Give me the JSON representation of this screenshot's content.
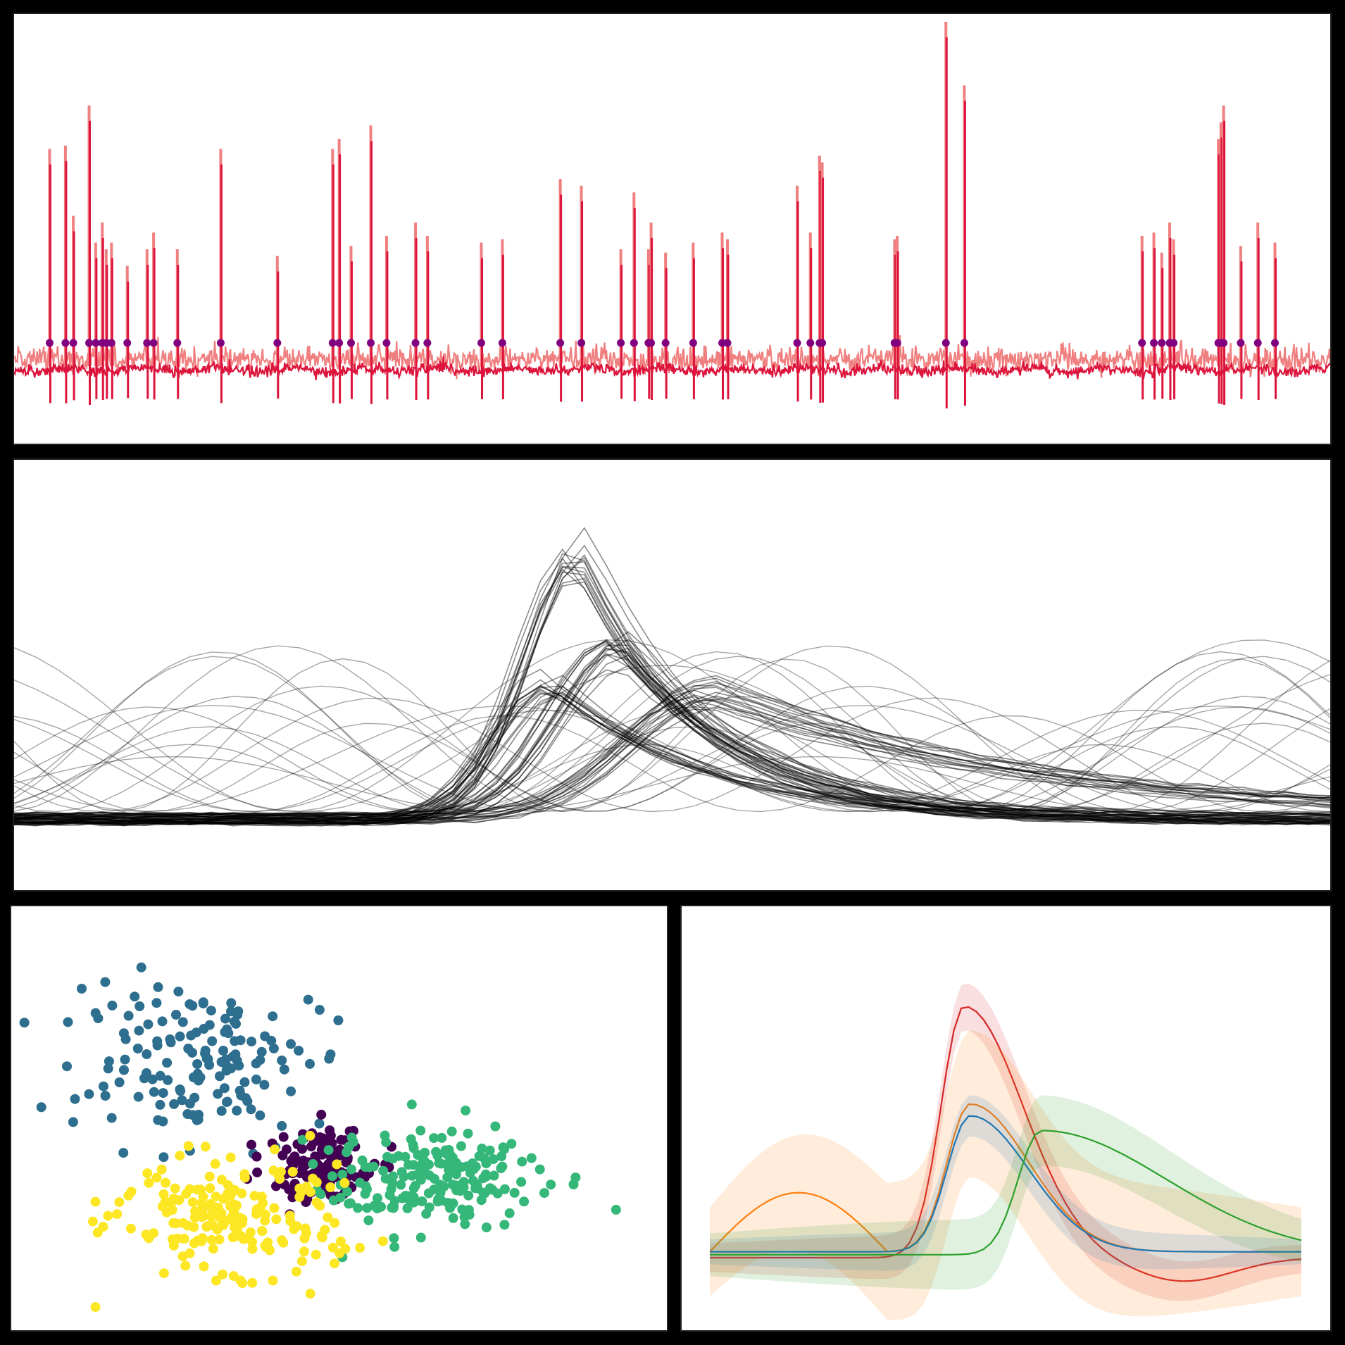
{
  "chart_data": [
    {
      "type": "line",
      "name": "raw-trace",
      "colors": {
        "filtered": "#dc143c",
        "raw": "#f08080",
        "spike_marker": "#800080"
      },
      "spike_times": [
        0.027,
        0.039,
        0.045,
        0.057,
        0.062,
        0.067,
        0.07,
        0.074,
        0.086,
        0.101,
        0.106,
        0.124,
        0.157,
        0.2,
        0.242,
        0.247,
        0.256,
        0.271,
        0.283,
        0.305,
        0.314,
        0.355,
        0.371,
        0.415,
        0.431,
        0.461,
        0.471,
        0.482,
        0.484,
        0.495,
        0.516,
        0.538,
        0.542,
        0.595,
        0.605,
        0.612,
        0.614,
        0.669,
        0.671,
        0.708,
        0.722,
        0.857,
        0.866,
        0.872,
        0.878,
        0.881,
        0.915,
        0.917,
        0.919,
        0.932,
        0.945,
        0.958
      ],
      "spike_amplitudes": [
        0.62,
        0.63,
        0.42,
        0.75,
        0.34,
        0.4,
        0.32,
        0.34,
        0.27,
        0.32,
        0.37,
        0.32,
        0.62,
        0.3,
        0.62,
        0.65,
        0.33,
        0.69,
        0.36,
        0.4,
        0.36,
        0.34,
        0.35,
        0.53,
        0.51,
        0.32,
        0.49,
        0.32,
        0.4,
        0.31,
        0.34,
        0.37,
        0.35,
        0.51,
        0.37,
        0.6,
        0.58,
        0.35,
        0.36,
        1.0,
        0.81,
        0.36,
        0.37,
        0.31,
        0.4,
        0.35,
        0.65,
        0.7,
        0.75,
        0.33,
        0.4,
        0.34
      ]
    },
    {
      "type": "line",
      "name": "spike-waveforms",
      "color": "#000000",
      "n_points": 60,
      "templates": [
        {
          "peak_x": 0.43,
          "amp": 0.73,
          "width": 0.06,
          "decay": 0.09,
          "count": 14
        },
        {
          "peak_x": 0.46,
          "amp": 0.47,
          "width": 0.07,
          "decay": 0.11,
          "count": 16
        },
        {
          "peak_x": 0.41,
          "amp": 0.38,
          "width": 0.06,
          "decay": 0.12,
          "count": 14
        },
        {
          "peak_x": 0.53,
          "amp": 0.35,
          "width": 0.09,
          "decay": 0.25,
          "count": 16
        }
      ]
    },
    {
      "type": "scatter",
      "name": "pca-clusters",
      "clusters": [
        {
          "color": "#2e6e8e",
          "center": [
            0.28,
            0.36
          ],
          "spread": [
            0.22,
            0.2
          ],
          "n": 150
        },
        {
          "color": "#440154",
          "center": [
            0.47,
            0.62
          ],
          "spread": [
            0.09,
            0.1
          ],
          "n": 120
        },
        {
          "color": "#35b779",
          "center": [
            0.64,
            0.64
          ],
          "spread": [
            0.19,
            0.14
          ],
          "n": 190
        },
        {
          "color": "#fde725",
          "center": [
            0.33,
            0.73
          ],
          "spread": [
            0.19,
            0.15
          ],
          "n": 190
        }
      ]
    },
    {
      "type": "line",
      "name": "cluster-means",
      "series": [
        {
          "color": "#d62728",
          "baseline": 0.05,
          "peak_x": 0.43,
          "amp": 0.85,
          "undershoot": -0.08,
          "band": 0.08
        },
        {
          "color": "#ff7f0e",
          "baseline": 0.07,
          "peak_x": 0.44,
          "amp": 0.5,
          "undershoot": 0.0,
          "band": 0.25
        },
        {
          "color": "#1f77b4",
          "baseline": 0.07,
          "peak_x": 0.44,
          "amp": 0.46,
          "undershoot": 0.0,
          "band": 0.07
        },
        {
          "color": "#2ca02c",
          "baseline": 0.06,
          "peak_x": 0.56,
          "amp": 0.42,
          "undershoot": 0.0,
          "band": 0.12
        }
      ]
    }
  ]
}
